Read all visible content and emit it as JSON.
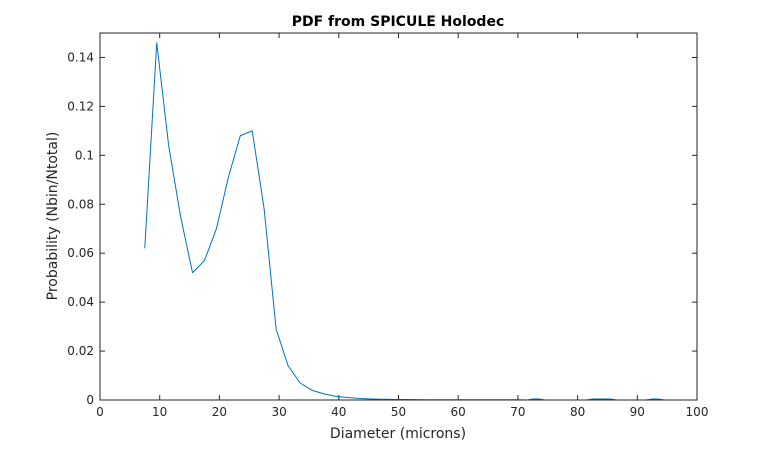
{
  "chart_data": {
    "type": "line",
    "title": "PDF from SPICULE Holodec",
    "xlabel": "Diameter (microns)",
    "ylabel": "Probability (Nbin/Ntotal)",
    "xlim": [
      0,
      100
    ],
    "ylim": [
      0,
      0.15
    ],
    "xticks": [
      0,
      10,
      20,
      30,
      40,
      50,
      60,
      70,
      80,
      90,
      100
    ],
    "yticks": [
      0,
      0.02,
      0.04,
      0.06,
      0.08,
      0.1,
      0.12,
      0.14
    ],
    "xtick_labels": [
      "0",
      "10",
      "20",
      "30",
      "40",
      "50",
      "60",
      "70",
      "80",
      "90",
      "100"
    ],
    "ytick_labels": [
      "0",
      "0.02",
      "0.04",
      "0.06",
      "0.08",
      "0.1",
      "0.12",
      "0.14"
    ],
    "grid": false,
    "series": [
      {
        "color": "#0072BD",
        "x": [
          7.5,
          9.5,
          11.5,
          13.5,
          15.5,
          17.5,
          19.5,
          21.5,
          23.5,
          25.5,
          27.5,
          29.5,
          31.5,
          33.5,
          35.5,
          37.5,
          39.5,
          41.5,
          43.5,
          45.5,
          47.5,
          49.5,
          51.5,
          55,
          60,
          65,
          70,
          71.5,
          72.5,
          73.5,
          74.5,
          80,
          81.5,
          82.5,
          83.5,
          85.5,
          86.5,
          90,
          91.5,
          92.5,
          93.5,
          94.5,
          100
        ],
        "y": [
          0.062,
          0.146,
          0.104,
          0.075,
          0.052,
          0.057,
          0.07,
          0.091,
          0.108,
          0.11,
          0.078,
          0.029,
          0.014,
          0.007,
          0.004,
          0.0025,
          0.0015,
          0.001,
          0.0006,
          0.0004,
          0.0003,
          0.0002,
          0.0002,
          0.0001,
          0.0001,
          0.0001,
          0.0001,
          0,
          0.0004,
          0.0004,
          0,
          0,
          0,
          0.0004,
          0.0004,
          0.0004,
          0,
          0,
          0,
          0.0004,
          0.0004,
          0,
          0
        ]
      }
    ]
  }
}
